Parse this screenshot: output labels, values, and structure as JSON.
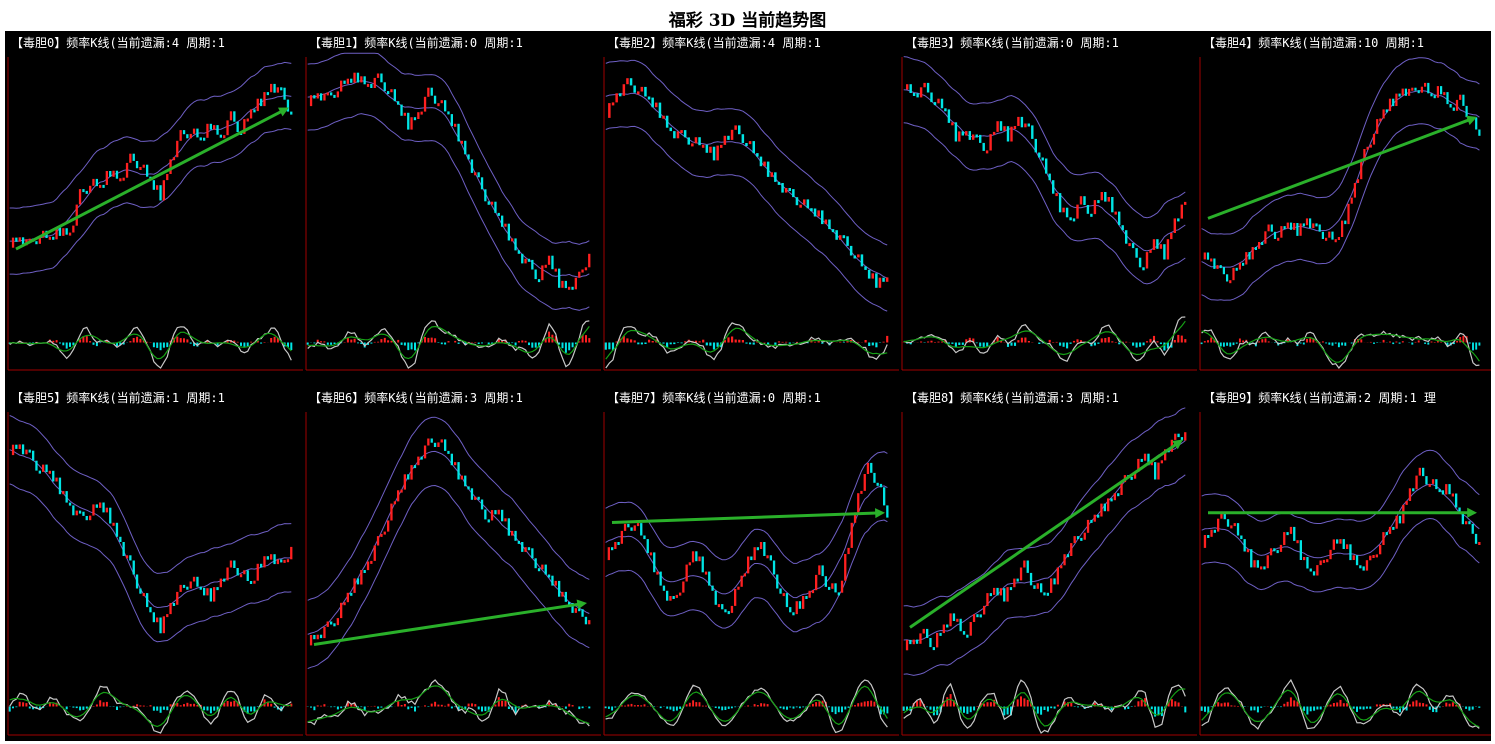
{
  "page_title": "福彩 3D 当前趋势图",
  "colors": {
    "up_candle": "#ff2020",
    "down_candle": "#00e5e5",
    "bollinger": "#6e5fc4",
    "trend_arrow": "#2ab02a",
    "macd_fast": "#c8c8c8",
    "macd_slow": "#16a016",
    "axis": "#a00000",
    "background": "#000000"
  },
  "panels": [
    {
      "header": "【毒胆0】频率K线(当前遗漏:4 周期:1"
    },
    {
      "header": "【毒胆1】频率K线(当前遗漏:0 周期:1"
    },
    {
      "header": "【毒胆2】频率K线(当前遗漏:4 周期:1"
    },
    {
      "header": "【毒胆3】频率K线(当前遗漏:0 周期:1"
    },
    {
      "header": "【毒胆4】频率K线(当前遗漏:10 周期:1"
    },
    {
      "header": "【毒胆5】频率K线(当前遗漏:1 周期:1"
    },
    {
      "header": "【毒胆6】频率K线(当前遗漏:3 周期:1"
    },
    {
      "header": "【毒胆7】频率K线(当前遗漏:0 周期:1"
    },
    {
      "header": "【毒胆8】频率K线(当前遗漏:3 周期:1"
    },
    {
      "header": "【毒胆9】频率K线(当前遗漏:2 周期:1 理"
    }
  ],
  "chart_data": [
    {
      "type": "line",
      "series": [
        {
          "values": [
            0.25,
            0.27,
            0.24,
            0.28,
            0.26,
            0.3,
            0.29,
            0.45,
            0.5,
            0.48,
            0.55,
            0.52,
            0.6,
            0.58,
            0.5,
            0.45,
            0.6,
            0.7,
            0.72,
            0.68,
            0.75,
            0.7,
            0.78,
            0.72,
            0.8,
            0.85,
            0.92,
            0.88,
            0.8
          ]
        }
      ],
      "trend": [
        0.22,
        0.82
      ]
    },
    {
      "type": "line",
      "series": [
        {
          "values": [
            0.85,
            0.88,
            0.86,
            0.9,
            0.93,
            0.95,
            0.92,
            0.94,
            0.9,
            0.82,
            0.75,
            0.8,
            0.88,
            0.85,
            0.78,
            0.7,
            0.6,
            0.5,
            0.42,
            0.35,
            0.28,
            0.2,
            0.15,
            0.1,
            0.18,
            0.08,
            0.06,
            0.1,
            0.2
          ]
        }
      ]
    },
    {
      "type": "line",
      "series": [
        {
          "values": [
            0.8,
            0.88,
            0.92,
            0.9,
            0.85,
            0.8,
            0.72,
            0.7,
            0.68,
            0.65,
            0.62,
            0.7,
            0.72,
            0.68,
            0.6,
            0.55,
            0.5,
            0.45,
            0.42,
            0.38,
            0.35,
            0.3,
            0.25,
            0.2,
            0.12,
            0.08,
            0.1
          ]
        }
      ]
    },
    {
      "type": "line",
      "series": [
        {
          "values": [
            0.92,
            0.88,
            0.9,
            0.85,
            0.8,
            0.7,
            0.72,
            0.68,
            0.65,
            0.75,
            0.7,
            0.78,
            0.72,
            0.62,
            0.5,
            0.4,
            0.35,
            0.42,
            0.38,
            0.45,
            0.4,
            0.3,
            0.2,
            0.15,
            0.25,
            0.2,
            0.35,
            0.42
          ]
        }
      ]
    },
    {
      "type": "line",
      "series": [
        {
          "values": [
            0.2,
            0.18,
            0.12,
            0.1,
            0.15,
            0.2,
            0.25,
            0.3,
            0.28,
            0.32,
            0.3,
            0.35,
            0.3,
            0.28,
            0.25,
            0.35,
            0.5,
            0.62,
            0.72,
            0.8,
            0.85,
            0.9,
            0.88,
            0.92,
            0.86,
            0.9,
            0.82,
            0.85,
            0.78,
            0.7
          ]
        }
      ],
      "trend": [
        0.35,
        0.78
      ]
    },
    {
      "type": "line",
      "series": [
        {
          "values": [
            0.88,
            0.9,
            0.85,
            0.8,
            0.78,
            0.72,
            0.65,
            0.6,
            0.62,
            0.65,
            0.6,
            0.5,
            0.4,
            0.3,
            0.2,
            0.15,
            0.25,
            0.3,
            0.35,
            0.3,
            0.28,
            0.35,
            0.4,
            0.38,
            0.32,
            0.42,
            0.45,
            0.4,
            0.48
          ]
        }
      ]
    },
    {
      "type": "line",
      "series": [
        {
          "values": [
            0.1,
            0.12,
            0.15,
            0.2,
            0.28,
            0.35,
            0.42,
            0.5,
            0.6,
            0.7,
            0.78,
            0.85,
            0.9,
            0.92,
            0.85,
            0.78,
            0.72,
            0.65,
            0.6,
            0.62,
            0.55,
            0.5,
            0.45,
            0.4,
            0.35,
            0.3,
            0.25,
            0.2,
            0.18
          ]
        }
      ],
      "trend": [
        0.08,
        0.25
      ]
    },
    {
      "type": "line",
      "series": [
        {
          "values": [
            0.45,
            0.5,
            0.55,
            0.58,
            0.5,
            0.4,
            0.3,
            0.25,
            0.35,
            0.45,
            0.4,
            0.3,
            0.2,
            0.25,
            0.35,
            0.45,
            0.5,
            0.4,
            0.3,
            0.2,
            0.25,
            0.3,
            0.38,
            0.32,
            0.28,
            0.5,
            0.7,
            0.8,
            0.75,
            0.6
          ]
        }
      ],
      "trend": [
        0.58,
        0.62
      ]
    },
    {
      "type": "line",
      "series": [
        {
          "values": [
            0.08,
            0.1,
            0.12,
            0.08,
            0.15,
            0.2,
            0.12,
            0.18,
            0.25,
            0.3,
            0.28,
            0.35,
            0.4,
            0.32,
            0.28,
            0.35,
            0.45,
            0.5,
            0.55,
            0.6,
            0.65,
            0.7,
            0.75,
            0.8,
            0.85,
            0.78,
            0.88,
            0.92,
            0.95
          ]
        }
      ],
      "trend": [
        0.15,
        0.92
      ]
    },
    {
      "type": "line",
      "series": [
        {
          "values": [
            0.5,
            0.55,
            0.6,
            0.58,
            0.5,
            0.42,
            0.4,
            0.45,
            0.5,
            0.55,
            0.45,
            0.38,
            0.4,
            0.48,
            0.5,
            0.45,
            0.4,
            0.42,
            0.5,
            0.55,
            0.6,
            0.72,
            0.78,
            0.75,
            0.7,
            0.72,
            0.62,
            0.55,
            0.5
          ]
        }
      ],
      "trend": [
        0.62,
        0.62
      ]
    }
  ]
}
